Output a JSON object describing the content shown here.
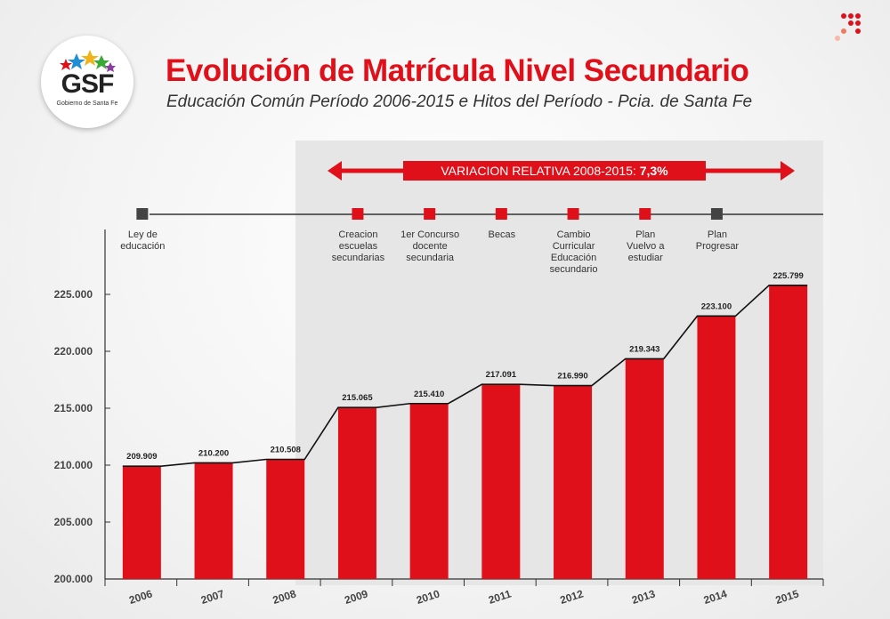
{
  "header": {
    "title": "Evolución de Matrícula Nivel Secundario",
    "subtitle": "Educación Común Período 2006-2015 e Hitos del Período - Pcia. de Santa Fe"
  },
  "logo": {
    "text": "GSF",
    "subtext": "Gobierno de Santa Fe"
  },
  "variation": {
    "label": "VARIACION RELATIVA 2008-2015: ",
    "value": "7,3%"
  },
  "milestones": [
    {
      "year": "2006",
      "lines": [
        "Ley de",
        "educación"
      ],
      "color": "#444444"
    },
    {
      "year": "2009",
      "lines": [
        "Creacion",
        "escuelas",
        "secundarias"
      ],
      "color": "#e0101a"
    },
    {
      "year": "2010",
      "lines": [
        "1er Concurso",
        "docente",
        "secundaria"
      ],
      "color": "#e0101a"
    },
    {
      "year": "2011",
      "lines": [
        "Becas"
      ],
      "color": "#e0101a"
    },
    {
      "year": "2012",
      "lines": [
        "Cambio",
        "Curricular",
        "Educación",
        "secundario"
      ],
      "color": "#e0101a"
    },
    {
      "year": "2013",
      "lines": [
        "Plan",
        "Vuelvo a",
        "estudiar"
      ],
      "color": "#e0101a"
    },
    {
      "year": "2014",
      "lines": [
        "Plan",
        "Progresar"
      ],
      "color": "#444444"
    }
  ],
  "colors": {
    "bar": "#e0101a",
    "accent": "#e0101a",
    "dark": "#444444"
  },
  "chart_data": {
    "type": "bar",
    "categories": [
      "2006",
      "2007",
      "2008",
      "2009",
      "2010",
      "2011",
      "2012",
      "2013",
      "2014",
      "2015"
    ],
    "values": [
      209909,
      210200,
      210508,
      215065,
      215410,
      217091,
      216990,
      219343,
      223100,
      225799
    ],
    "value_labels": [
      "209.909",
      "210.200",
      "210.508",
      "215.065",
      "215.410",
      "217.091",
      "216.990",
      "219.343",
      "223.100",
      "225.799"
    ],
    "yticks": [
      200000,
      205000,
      210000,
      215000,
      220000,
      225000
    ],
    "ytick_labels": [
      "200.000",
      "205.000",
      "210.000",
      "215.000",
      "220.000",
      "225.000"
    ],
    "ylim": [
      200000,
      227500
    ],
    "title": "Evolución de Matrícula Nivel Secundario",
    "xlabel": "",
    "ylabel": "",
    "grid": false
  }
}
